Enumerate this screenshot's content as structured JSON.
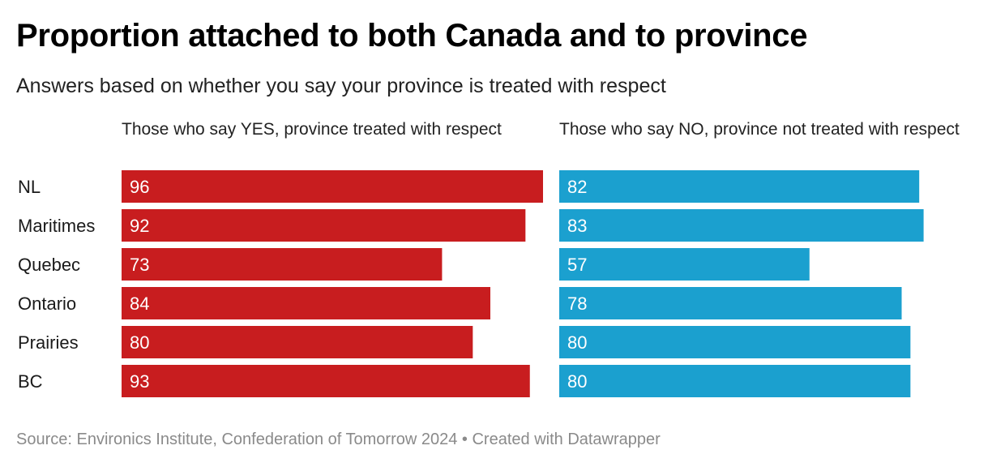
{
  "title": "Proportion attached to both Canada and to province",
  "subtitle": "Answers based on whether you say your province is treated with respect",
  "source": "Source: Environics Institute, Confederation of Tomorrow 2024 • Created with Datawrapper",
  "colors": {
    "yes": "#c81d1f",
    "no": "#1ba0cf"
  },
  "chart_data": {
    "type": "bar",
    "orientation": "horizontal",
    "title": "Proportion attached to both Canada and to province",
    "subtitle": "Answers based on whether you say your province is treated with respect",
    "categories": [
      "NL",
      "Maritimes",
      "Quebec",
      "Ontario",
      "Prairies",
      "BC"
    ],
    "series": [
      {
        "name": "Those who say YES, province treated with respect",
        "values": [
          96,
          92,
          73,
          84,
          80,
          93
        ]
      },
      {
        "name": "Those who say NO, province not treated with respect",
        "values": [
          82,
          83,
          57,
          78,
          80,
          80
        ]
      }
    ],
    "xlim": [
      0,
      96
    ]
  }
}
